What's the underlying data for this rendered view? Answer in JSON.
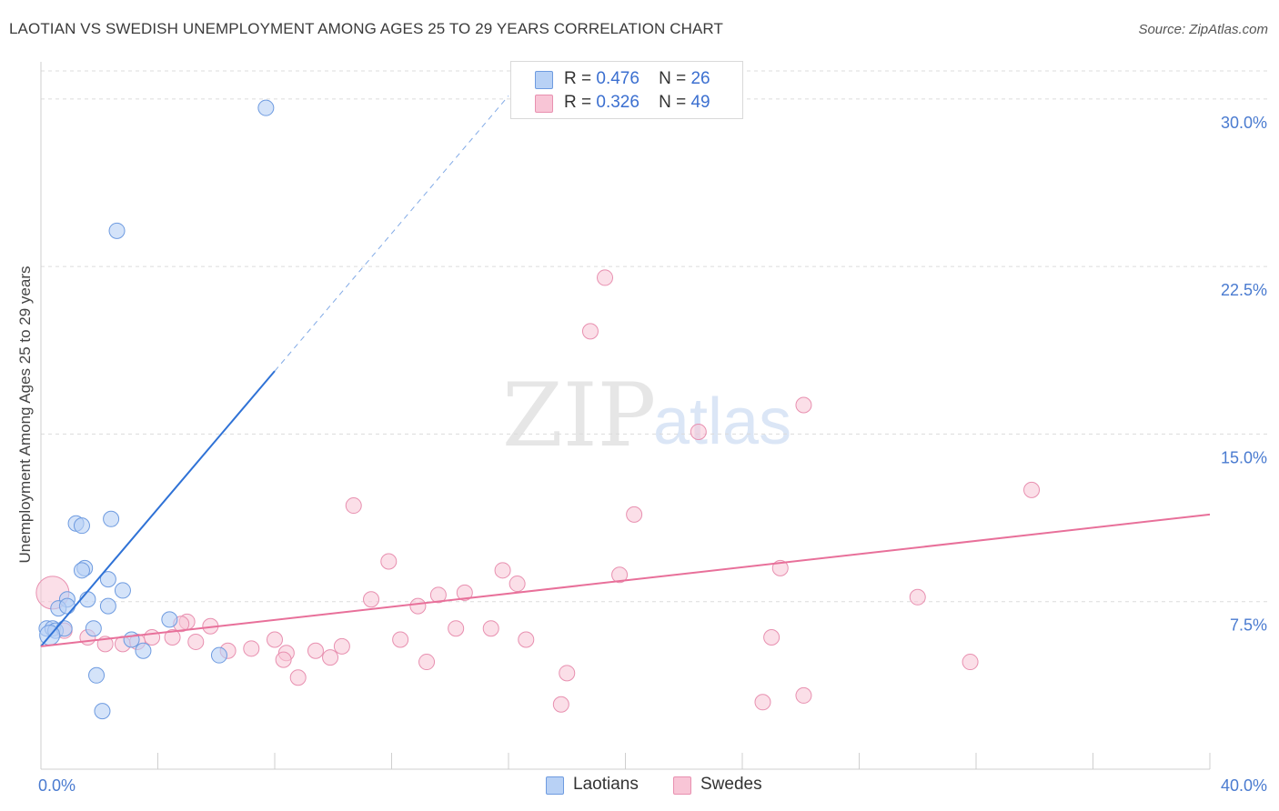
{
  "title": "LAOTIAN VS SWEDISH UNEMPLOYMENT AMONG AGES 25 TO 29 YEARS CORRELATION CHART",
  "source": "Source: ZipAtlas.com",
  "watermark": {
    "zip": "ZIP",
    "atlas": "atlas"
  },
  "colors": {
    "laotians_fill": "#b8d1f5",
    "laotians_stroke": "#6e9be0",
    "laotians_line": "#2f72d6",
    "swedes_fill": "#f8c5d6",
    "swedes_stroke": "#e890b0",
    "swedes_line": "#e8709a",
    "grid": "#dcdcdc",
    "tick_text": "#4a7bd0"
  },
  "legend": {
    "r_label": "R =",
    "n_label": "N =",
    "laotians": {
      "r": "0.476",
      "n": "26"
    },
    "swedes": {
      "r": "0.326",
      "n": "49"
    }
  },
  "chart_data": {
    "type": "scatter",
    "title": "LAOTIAN VS SWEDISH UNEMPLOYMENT AMONG AGES 25 TO 29 YEARS CORRELATION CHART",
    "xlabel": "",
    "ylabel": "Unemployment Among Ages 25 to 29 years",
    "xlim": [
      0,
      40
    ],
    "ylim": [
      0,
      31.5
    ],
    "x_tick_labels": [
      "0.0%",
      "40.0%"
    ],
    "y_ticks": [
      7.5,
      15.0,
      22.5,
      30.0
    ],
    "y_tick_labels": [
      "7.5%",
      "15.0%",
      "22.5%",
      "30.0%"
    ],
    "grid": true,
    "legend_position": "top-center",
    "series": [
      {
        "name": "Laotians",
        "points": [
          [
            7.7,
            29.6
          ],
          [
            2.6,
            24.1
          ],
          [
            2.4,
            11.2
          ],
          [
            1.2,
            11.0
          ],
          [
            1.4,
            10.9
          ],
          [
            1.5,
            9.0
          ],
          [
            1.4,
            8.9
          ],
          [
            2.3,
            8.5
          ],
          [
            2.8,
            8.0
          ],
          [
            1.6,
            7.6
          ],
          [
            0.9,
            7.6
          ],
          [
            2.3,
            7.3
          ],
          [
            0.6,
            7.2
          ],
          [
            0.9,
            7.3
          ],
          [
            4.4,
            6.7
          ],
          [
            0.2,
            6.3
          ],
          [
            0.4,
            6.3
          ],
          [
            0.5,
            6.2
          ],
          [
            0.8,
            6.3
          ],
          [
            1.8,
            6.3
          ],
          [
            3.1,
            5.8
          ],
          [
            3.5,
            5.3
          ],
          [
            6.1,
            5.1
          ],
          [
            1.9,
            4.2
          ],
          [
            2.1,
            2.6
          ],
          [
            0.3,
            6.0
          ]
        ],
        "trend": {
          "x0": 0,
          "y0": 5.5,
          "x_solid_end": 8.0,
          "x_dash_end": 16.0,
          "slope": 1.54
        }
      },
      {
        "name": "Swedes",
        "points": [
          [
            19.3,
            22.0
          ],
          [
            18.8,
            19.6
          ],
          [
            26.1,
            16.3
          ],
          [
            22.5,
            15.1
          ],
          [
            33.9,
            12.5
          ],
          [
            10.7,
            11.8
          ],
          [
            20.3,
            11.4
          ],
          [
            11.9,
            9.3
          ],
          [
            15.8,
            8.9
          ],
          [
            25.3,
            9.0
          ],
          [
            19.8,
            8.7
          ],
          [
            16.3,
            8.3
          ],
          [
            14.5,
            7.9
          ],
          [
            13.6,
            7.8
          ],
          [
            11.3,
            7.6
          ],
          [
            12.9,
            7.3
          ],
          [
            30.0,
            7.7
          ],
          [
            5.0,
            6.6
          ],
          [
            5.8,
            6.4
          ],
          [
            4.8,
            6.5
          ],
          [
            14.2,
            6.3
          ],
          [
            15.4,
            6.3
          ],
          [
            3.8,
            5.9
          ],
          [
            12.3,
            5.8
          ],
          [
            16.6,
            5.8
          ],
          [
            8.0,
            5.8
          ],
          [
            6.4,
            5.3
          ],
          [
            10.3,
            5.5
          ],
          [
            7.2,
            5.4
          ],
          [
            9.4,
            5.3
          ],
          [
            9.9,
            5.0
          ],
          [
            8.4,
            5.2
          ],
          [
            8.3,
            4.9
          ],
          [
            13.2,
            4.8
          ],
          [
            25.0,
            5.9
          ],
          [
            31.8,
            4.8
          ],
          [
            0.4,
            7.9
          ],
          [
            0.8,
            6.2
          ],
          [
            1.6,
            5.9
          ],
          [
            2.2,
            5.6
          ],
          [
            2.8,
            5.6
          ],
          [
            3.3,
            5.7
          ],
          [
            8.8,
            4.1
          ],
          [
            18.0,
            4.3
          ],
          [
            17.8,
            2.9
          ],
          [
            24.7,
            3.0
          ],
          [
            26.1,
            3.3
          ],
          [
            5.3,
            5.7
          ],
          [
            4.5,
            5.9
          ]
        ],
        "trend": {
          "x0": 0,
          "y0": 5.5,
          "x1": 40,
          "y1": 11.4
        }
      }
    ]
  },
  "bottom_legend": [
    "Laotians",
    "Swedes"
  ]
}
